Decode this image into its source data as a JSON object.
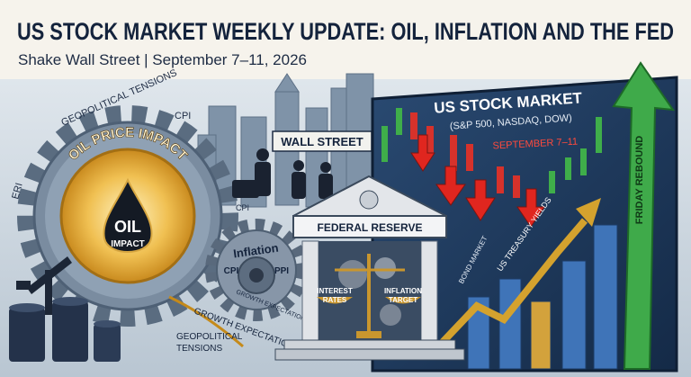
{
  "header": {
    "title": "US STOCK MARKET WEEKLY UPDATE: OIL, INFLATION AND THE FED",
    "subtitle": "Shake Wall Street | September 7–11, 2026"
  },
  "oil_gear": {
    "top_left_label": "GEOPOLITICAL TENSIONS",
    "top_label": "CPI",
    "left_label": "ERI",
    "ring_label": "OIL PRICE IMPACT",
    "center_lines": [
      "OIL",
      "IMPACT"
    ]
  },
  "wall_street_sign": "WALL STREET",
  "inflation_gear": {
    "input_label": "CPI",
    "title": "Inflation",
    "left": "CPI",
    "right": "PPI",
    "bottom": "GROWTH EXPECTATIONS"
  },
  "bottom_labels": {
    "growth": "GROWTH EXPECTATIONS",
    "geopolitical_lines": [
      "GEOPOLITICAL",
      "TENSIONS"
    ]
  },
  "federal_reserve": {
    "name": "FEDERAL RESERVE",
    "left_pan_lines": [
      "INTEREST",
      "RATES"
    ],
    "right_pan_lines": [
      "INFLATION",
      "TARGET"
    ]
  },
  "market_board": {
    "title": "US STOCK MARKET",
    "indices": "(S&P 500, NASDAQ, DOW)",
    "dates": "SEPTEMBER 7–11",
    "rebound": "FRIDAY REBOUND",
    "bond": "BOND MARKET",
    "yields": "US TREASURY YIELDS"
  }
}
